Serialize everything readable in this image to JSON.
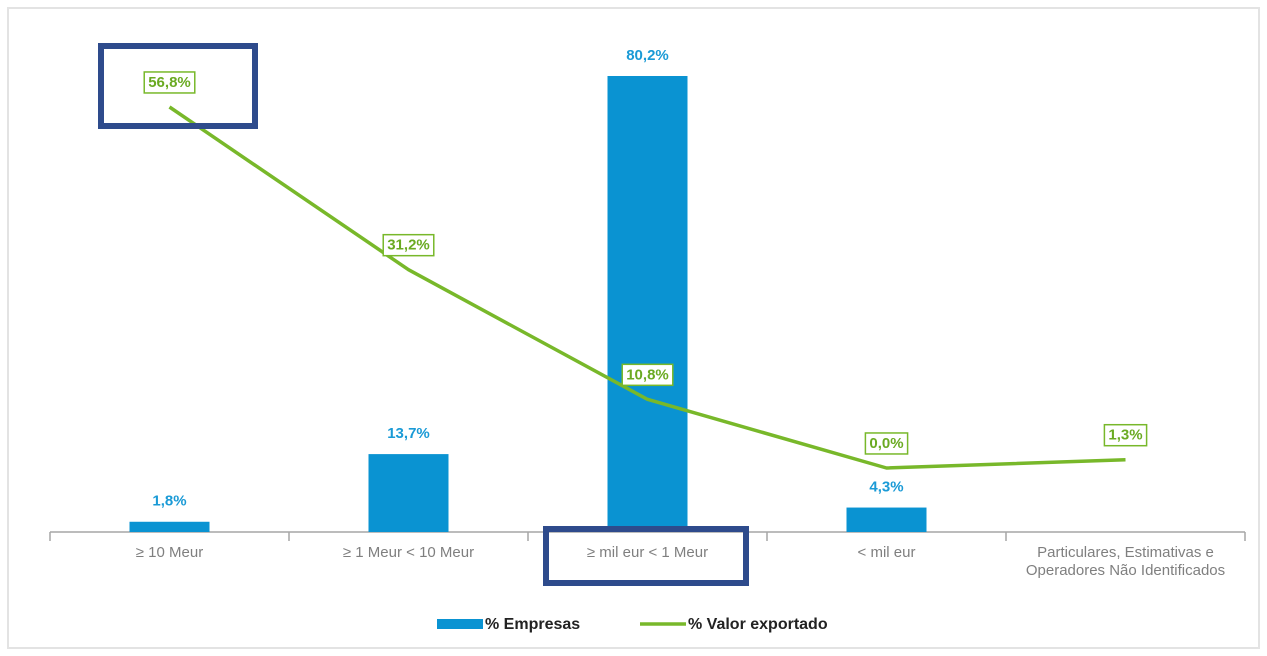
{
  "chart_data": {
    "type": "bar",
    "categories": [
      "≥ 10 Meur",
      "≥ 1 Meur < 10 Meur",
      "≥ mil eur < 1 Meur",
      "< mil eur",
      "Particulares, Estimativas e Operadores Não Identificados"
    ],
    "series": [
      {
        "name": "% Empresas",
        "type": "bar",
        "color": "#0a93d2",
        "values": [
          1.8,
          13.7,
          80.2,
          4.3,
          null
        ],
        "value_labels": [
          "1,8%",
          "13,7%",
          "80,2%",
          "4,3%",
          null
        ]
      },
      {
        "name": "% Valor exportado",
        "type": "line",
        "axis": "y2",
        "color": "#78b82a",
        "values": [
          56.8,
          31.2,
          10.8,
          0.0,
          1.3
        ],
        "value_labels": [
          "56,8%",
          "31,2%",
          "10,8%",
          "0,0%",
          "1,3%"
        ]
      }
    ]
  }
}
